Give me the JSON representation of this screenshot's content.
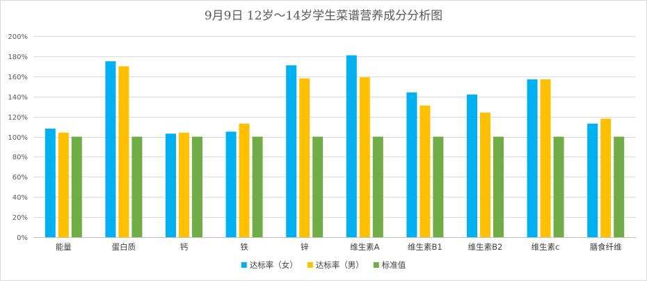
{
  "chart_data": {
    "type": "bar",
    "title": "9月9日 12岁～14岁学生菜谱营养成分分析图",
    "xlabel": "",
    "ylabel": "",
    "categories": [
      "能量",
      "蛋白质",
      "钙",
      "铁",
      "锌",
      "维生素A",
      "维生素B1",
      "维生素B2",
      "维生素c",
      "膳食纤维"
    ],
    "series": [
      {
        "name": "达标率（女）",
        "color": "#00b0f0",
        "values": [
          108,
          175,
          103,
          105,
          171,
          181,
          144,
          142,
          157,
          113
        ]
      },
      {
        "name": "达标率（男）",
        "color": "#ffc000",
        "values": [
          104,
          170,
          104,
          113,
          158,
          159,
          131,
          124,
          157,
          118
        ]
      },
      {
        "name": "标准值",
        "color": "#70ad47",
        "values": [
          100,
          100,
          100,
          100,
          100,
          100,
          100,
          100,
          100,
          100
        ]
      }
    ],
    "ylim": [
      0,
      200
    ],
    "yticks": [
      "0%",
      "20%",
      "40%",
      "60%",
      "80%",
      "100%",
      "120%",
      "140%",
      "160%",
      "180%",
      "200%"
    ],
    "grid": true,
    "legend_position": "bottom"
  }
}
